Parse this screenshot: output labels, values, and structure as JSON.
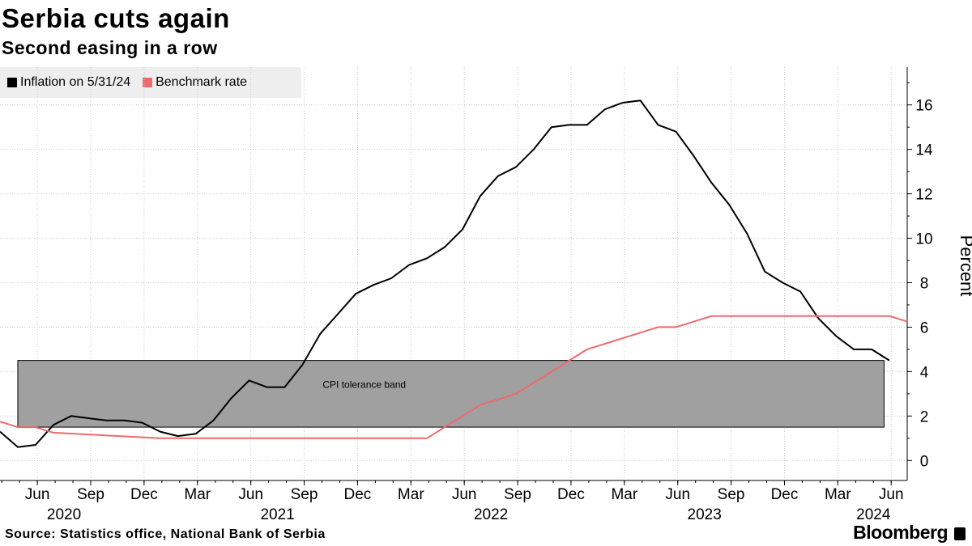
{
  "header": {
    "title": "Serbia cuts again",
    "subtitle": "Second easing in a row"
  },
  "legend": {
    "items": [
      {
        "label": "Inflation on 5/31/24",
        "color": "#000000"
      },
      {
        "label": "Benchmark rate",
        "color": "#ee6a6a"
      }
    ]
  },
  "footer": {
    "source": "Source: Statistics office, National Bank of Serbia",
    "brand": "Bloomberg"
  },
  "chart_data": {
    "type": "line",
    "title": "Serbia cuts again",
    "subtitle": "Second easing in a row",
    "ylabel": "Percent",
    "xlabel": "",
    "ylim": [
      -0.9,
      17.7
    ],
    "yticks": [
      0,
      2,
      4,
      6,
      8,
      10,
      12,
      14,
      16
    ],
    "grid": true,
    "legend_position": "top-left",
    "x_tick_labels": [
      {
        "label": "Jun",
        "month": 5
      },
      {
        "label": "Sep",
        "month": 8
      },
      {
        "label": "Dec",
        "month": 11
      },
      {
        "label": "Mar",
        "month": 14
      },
      {
        "label": "Jun",
        "month": 17
      },
      {
        "label": "Sep",
        "month": 20
      },
      {
        "label": "Dec",
        "month": 23
      },
      {
        "label": "Mar",
        "month": 26
      },
      {
        "label": "Jun",
        "month": 29
      },
      {
        "label": "Sep",
        "month": 32
      },
      {
        "label": "Dec",
        "month": 35
      },
      {
        "label": "Mar",
        "month": 38
      },
      {
        "label": "Jun",
        "month": 41
      },
      {
        "label": "Sep",
        "month": 44
      },
      {
        "label": "Dec",
        "month": 47
      },
      {
        "label": "Mar",
        "month": 50
      },
      {
        "label": "Jun",
        "month": 53
      }
    ],
    "year_labels": [
      {
        "label": "2020",
        "month": 6.5
      },
      {
        "label": "2021",
        "month": 18.5
      },
      {
        "label": "2022",
        "month": 30.5
      },
      {
        "label": "2023",
        "month": 42.5
      },
      {
        "label": "2024",
        "month": 52
      }
    ],
    "x_range_months": [
      2.9,
      53.9
    ],
    "month_index_note": "0 = Jan 2020",
    "band": {
      "label": "CPI tolerance band",
      "low": 1.5,
      "high": 4.5,
      "start_month": 3.9,
      "end_month": 52.6,
      "color": "#a0a0a0"
    },
    "series": [
      {
        "name": "Inflation on 5/31/24",
        "color": "#000000",
        "x": [
          2.9,
          3.9,
          4.9,
          5.9,
          6.9,
          7.9,
          8.9,
          9.9,
          10.9,
          11.9,
          12.9,
          13.9,
          14.9,
          15.9,
          16.9,
          17.9,
          18.9,
          19.9,
          20.9,
          21.9,
          22.9,
          23.9,
          24.9,
          25.9,
          26.9,
          27.9,
          28.9,
          29.9,
          30.9,
          31.9,
          32.9,
          33.9,
          34.9,
          35.9,
          36.9,
          37.9,
          38.9,
          39.9,
          40.9,
          41.9,
          42.9,
          43.9,
          44.9,
          45.9,
          46.9,
          47.9,
          48.9,
          49.9,
          50.9,
          51.9,
          52.9
        ],
        "values": [
          1.3,
          0.6,
          0.7,
          1.6,
          2.0,
          1.9,
          1.8,
          1.8,
          1.7,
          1.3,
          1.1,
          1.2,
          1.8,
          2.8,
          3.6,
          3.3,
          3.3,
          4.3,
          5.7,
          6.6,
          7.5,
          7.9,
          8.2,
          8.8,
          9.1,
          9.6,
          10.4,
          11.9,
          12.8,
          13.2,
          14.0,
          15.0,
          15.1,
          15.1,
          15.8,
          16.1,
          16.2,
          15.1,
          14.8,
          13.7,
          12.5,
          11.5,
          10.2,
          8.5,
          8.0,
          7.6,
          6.4,
          5.6,
          5.0,
          5.0,
          4.5
        ]
      },
      {
        "name": "Benchmark rate",
        "color": "#ee6a6a",
        "x": [
          2.9,
          3.9,
          4.9,
          5.9,
          11.9,
          26.9,
          29.9,
          31.9,
          35.9,
          39.9,
          40.9,
          42.9,
          52.9,
          53.9
        ],
        "values": [
          1.75,
          1.5,
          1.5,
          1.25,
          1.0,
          1.0,
          2.5,
          3.0,
          5.0,
          6.0,
          6.0,
          6.5,
          6.5,
          6.25
        ]
      }
    ]
  }
}
